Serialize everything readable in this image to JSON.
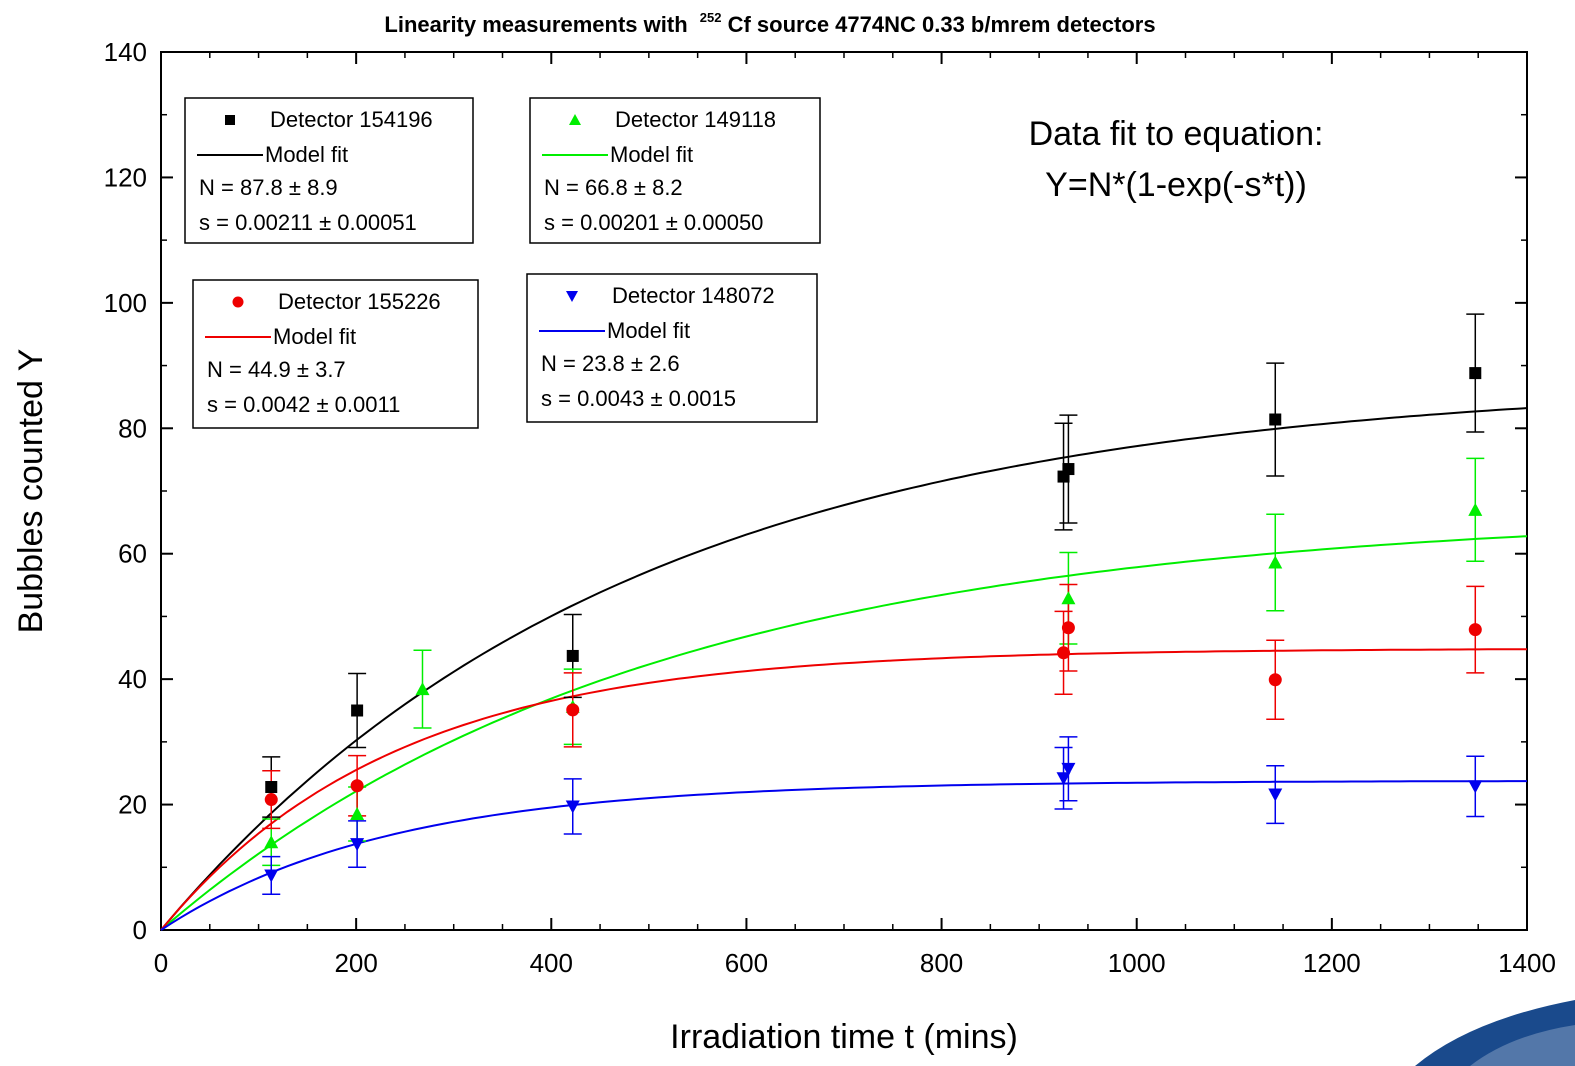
{
  "chart_data": {
    "type": "scatter",
    "title": "Linearity measurements with",
    "title_superscript": "252",
    "title_suffix": "Cf source 4774NC 0.33 b/mrem detectors",
    "xlabel": "Irradiation time t (mins)",
    "ylabel": "Bubbles counted Y",
    "xlim": [
      0,
      1400
    ],
    "ylim": [
      0,
      140
    ],
    "xticks": [
      0,
      200,
      400,
      600,
      800,
      1000,
      1200,
      1400
    ],
    "yticks": [
      0,
      20,
      40,
      60,
      80,
      100,
      120,
      140
    ],
    "grid": false,
    "annotation": {
      "line1": "Data fit to equation:",
      "line2": "Y=N*(1-exp(-s*t))"
    },
    "series": [
      {
        "name": "Detector 154196",
        "color": "#000000",
        "marker": "square",
        "fit_label": "Model fit",
        "N_text": "N = 87.8 ± 8.9",
        "s_text": "s = 0.00211 ± 0.00051",
        "fit": {
          "N": 87.8,
          "s": 0.00211
        },
        "points": [
          {
            "x": 113,
            "y": 22.8,
            "err": 4.8
          },
          {
            "x": 201,
            "y": 35.0,
            "err": 5.9
          },
          {
            "x": 422,
            "y": 43.7,
            "err": 6.6
          },
          {
            "x": 925,
            "y": 72.3,
            "err": 8.5
          },
          {
            "x": 930,
            "y": 73.5,
            "err": 8.6
          },
          {
            "x": 1142,
            "y": 81.4,
            "err": 9.0
          },
          {
            "x": 1347,
            "y": 88.8,
            "err": 9.4
          }
        ]
      },
      {
        "name": "Detector 149118",
        "color": "#00ee00",
        "marker": "triangle-up",
        "fit_label": "Model fit",
        "N_text": "N = 66.8 ± 8.2",
        "s_text": "s = 0.00201 ± 0.00050",
        "fit": {
          "N": 66.8,
          "s": 0.00201
        },
        "points": [
          {
            "x": 113,
            "y": 14.0,
            "err": 3.7
          },
          {
            "x": 201,
            "y": 18.5,
            "err": 4.3
          },
          {
            "x": 268,
            "y": 38.4,
            "err": 6.2
          },
          {
            "x": 422,
            "y": 35.6,
            "err": 6.0
          },
          {
            "x": 930,
            "y": 52.9,
            "err": 7.3
          },
          {
            "x": 1142,
            "y": 58.6,
            "err": 7.7
          },
          {
            "x": 1347,
            "y": 67.0,
            "err": 8.2
          }
        ]
      },
      {
        "name": "Detector 155226",
        "color": "#ee0000",
        "marker": "circle",
        "fit_label": "Model fit",
        "N_text": "N = 44.9 ± 3.7",
        "s_text": "s = 0.0042 ± 0.0011",
        "fit": {
          "N": 44.9,
          "s": 0.0042
        },
        "points": [
          {
            "x": 113,
            "y": 20.8,
            "err": 4.6
          },
          {
            "x": 201,
            "y": 23.0,
            "err": 4.8
          },
          {
            "x": 422,
            "y": 35.1,
            "err": 5.9
          },
          {
            "x": 925,
            "y": 44.2,
            "err": 6.6
          },
          {
            "x": 930,
            "y": 48.2,
            "err": 6.9
          },
          {
            "x": 1142,
            "y": 39.9,
            "err": 6.3
          },
          {
            "x": 1347,
            "y": 47.9,
            "err": 6.9
          }
        ]
      },
      {
        "name": "Detector 148072",
        "color": "#0000ee",
        "marker": "triangle-down",
        "fit_label": "Model fit",
        "N_text": "N = 23.8 ± 2.6",
        "s_text": "s = 0.0043 ± 0.0015",
        "fit": {
          "N": 23.8,
          "s": 0.0043
        },
        "points": [
          {
            "x": 113,
            "y": 8.7,
            "err": 3.0
          },
          {
            "x": 201,
            "y": 13.7,
            "err": 3.7
          },
          {
            "x": 422,
            "y": 19.7,
            "err": 4.4
          },
          {
            "x": 925,
            "y": 24.2,
            "err": 4.9
          },
          {
            "x": 930,
            "y": 25.7,
            "err": 5.1
          },
          {
            "x": 1142,
            "y": 21.6,
            "err": 4.6
          },
          {
            "x": 1347,
            "y": 22.9,
            "err": 4.8
          }
        ]
      }
    ]
  }
}
